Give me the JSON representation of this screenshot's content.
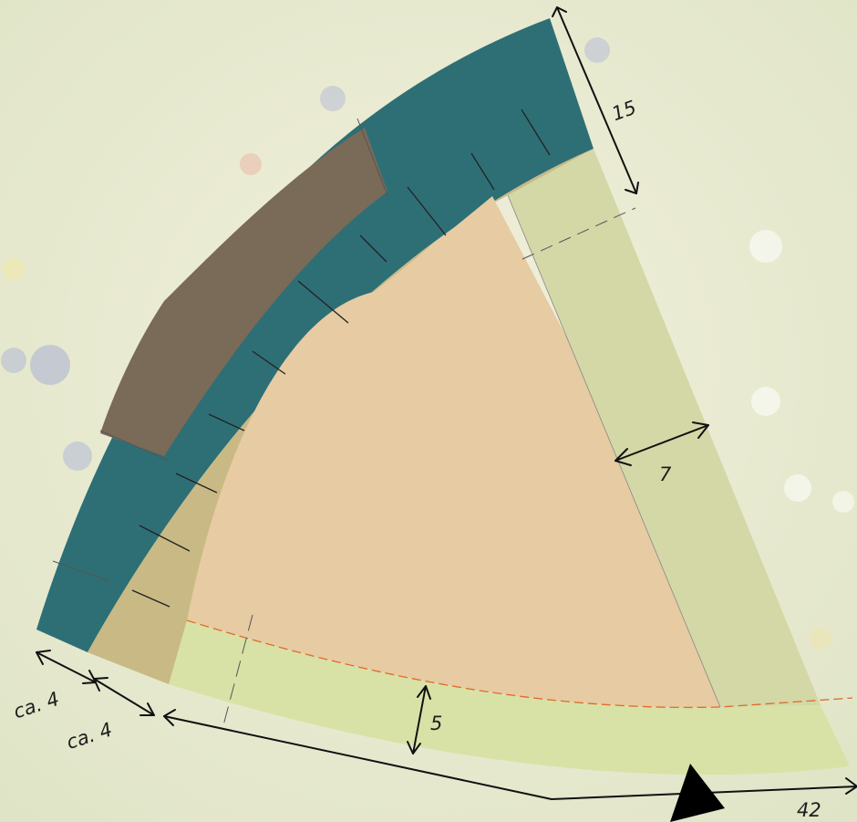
{
  "colors": {
    "background": "#e9ebd6",
    "teal_border": "#2e6f76",
    "brown_border": "#7a6a58",
    "khaki_band": "#c9b985",
    "inner_sector": "#e6cba3",
    "side_strip": "#d3d8a6",
    "bottom_strip": "#d9e2a6",
    "orange_line": "#e2692c",
    "dimension_line": "#111111"
  },
  "dimensions": {
    "top_width": "15",
    "side_strip_width": "7",
    "bottom_strip_width": "5",
    "outer_band_width": "ca. 4",
    "inner_band_width": "ca. 4",
    "radius_length": "42"
  }
}
